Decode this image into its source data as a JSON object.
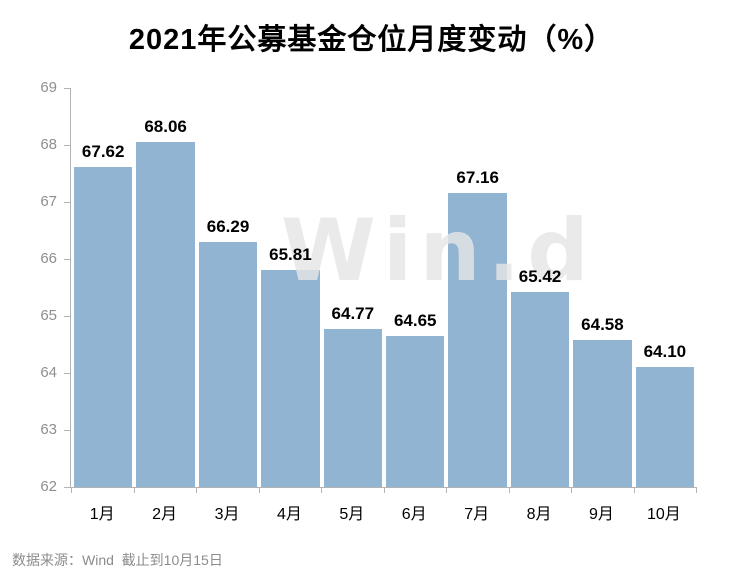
{
  "title": "2021年公募基金仓位月度变动（%）",
  "watermark": "Win.d",
  "footer": {
    "source": "数据来源：Wind  截止到10月15日"
  },
  "colors": {
    "bar": "#92b4d3",
    "axis": "#b3b3b3",
    "y_label": "#8f8f8f",
    "value_label": "#000000",
    "watermark": "#e5e5e5",
    "source_text": "#8c8c8c"
  },
  "chart_data": {
    "type": "bar",
    "title": "2021年公募基金仓位月度变动（%）",
    "categories": [
      "1月",
      "2月",
      "3月",
      "4月",
      "5月",
      "6月",
      "7月",
      "8月",
      "9月",
      "10月"
    ],
    "values": [
      67.62,
      68.06,
      66.29,
      65.81,
      64.77,
      64.65,
      67.16,
      65.42,
      64.58,
      64.1
    ],
    "data_labels": [
      "67.62",
      "68.06",
      "66.29",
      "65.81",
      "64.77",
      "64.65",
      "67.16",
      "65.42",
      "64.58",
      "64.10"
    ],
    "xlabel": "",
    "ylabel": "",
    "ylim": [
      62,
      69
    ],
    "yticks": [
      62,
      63,
      64,
      65,
      66,
      67,
      68,
      69
    ],
    "grid": false,
    "legend": false,
    "bar_color": "#92b4d3",
    "watermark": "Win.d",
    "source_note": "数据来源：Wind  截止到10月15日"
  }
}
